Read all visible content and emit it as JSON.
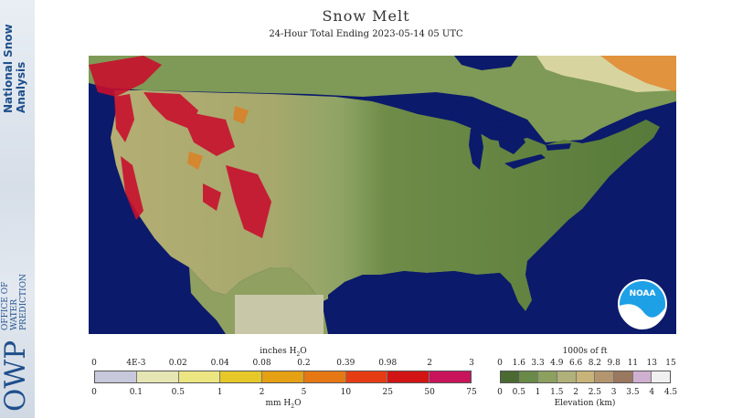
{
  "title": "Snow Melt",
  "subtitle": "24-Hour Total Ending 2023-05-14 05 UTC",
  "branding": {
    "nsa_line1": "National Snow",
    "nsa_line2": "Analysis",
    "owp_small_line1": "OFFICE OF",
    "owp_small_line2": "WATER",
    "owp_small_line3": "PREDICTION",
    "owp_big": "OWP",
    "noaa_logo": "NOAA"
  },
  "colors": {
    "water": "#0b1a6b",
    "land_east": "#5a7a3e",
    "land_plains": "#8aa063",
    "land_west": "#b8b37a",
    "melt_heavy": "#c8102e",
    "border": "#1a1a1a"
  },
  "melt_legend": {
    "top_label": "inches H",
    "top_label_sub": "2",
    "top_label_end": "O",
    "bottom_label": "mm H",
    "bottom_label_sub": "2",
    "bottom_label_end": "O",
    "inches_ticks": [
      "0",
      "4E-3",
      "0.02",
      "0.04",
      "0.08",
      "0.2",
      "0.39",
      "0.98",
      "2",
      "3"
    ],
    "mm_ticks": [
      "0",
      "0.1",
      "0.5",
      "1",
      "2",
      "5",
      "10",
      "25",
      "50",
      "75"
    ],
    "colors": [
      "#c8c8dc",
      "#e6e6b4",
      "#ece682",
      "#e6c828",
      "#e6a014",
      "#e67814",
      "#e63c14",
      "#d21414",
      "#c8145a"
    ]
  },
  "elevation_legend": {
    "top_label": "1000s of ft",
    "bottom_label": "Elevation (km)",
    "ft_ticks": [
      "0",
      "1.6",
      "3.3",
      "4.9",
      "6.6",
      "8.2",
      "9.8",
      "11",
      "13",
      "15"
    ],
    "km_ticks": [
      "0",
      "0.5",
      "1",
      "1.5",
      "2",
      "2.5",
      "3",
      "3.5",
      "4",
      "4.5"
    ],
    "colors": [
      "#4a6a32",
      "#6a8a48",
      "#8ca060",
      "#b0b07a",
      "#c8b478",
      "#b4966e",
      "#9a7860",
      "#d0b0d0",
      "#f0f0f0"
    ]
  }
}
